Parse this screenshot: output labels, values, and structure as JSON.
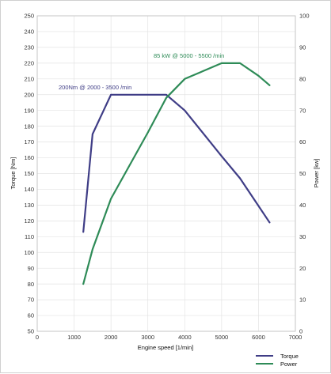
{
  "chart_data": {
    "type": "line",
    "xlabel": "Engine speed [1/min]",
    "ylabel_left": "Torque [Nm]",
    "ylabel_right": "Power [kw]",
    "xlim": [
      0,
      7000
    ],
    "ylim_left": [
      50,
      250
    ],
    "ylim_right": [
      0,
      100
    ],
    "x_ticks": [
      "0",
      "1000",
      "2000",
      "3000",
      "4000",
      "5000",
      "6000",
      "7000"
    ],
    "left_ticks": [
      "50",
      "60",
      "70",
      "80",
      "90",
      "100",
      "110",
      "120",
      "130",
      "140",
      "150",
      "160",
      "170",
      "180",
      "190",
      "200",
      "210",
      "220",
      "230",
      "240",
      "250"
    ],
    "right_ticks": [
      "0",
      "10",
      "20",
      "30",
      "40",
      "50",
      "60",
      "70",
      "80",
      "90",
      "100"
    ],
    "grid": true,
    "legend_position": "bottom-right",
    "series": [
      {
        "name": "Torque",
        "axis": "left",
        "color": "#3f3d86",
        "x": [
          1250,
          1500,
          2000,
          3000,
          3500,
          4000,
          5000,
          5500,
          6300
        ],
        "y": [
          113,
          175,
          200,
          200,
          200,
          190,
          161,
          147,
          119
        ]
      },
      {
        "name": "Power",
        "axis": "right",
        "color": "#2e8b57",
        "x": [
          1250,
          1500,
          2000,
          3000,
          3500,
          4000,
          5000,
          5500,
          6000,
          6300
        ],
        "y": [
          15,
          26,
          42,
          63,
          74,
          80,
          85,
          85,
          81,
          78
        ]
      }
    ],
    "annotations": [
      {
        "text": "200Nm @ 2000 - 3500 /min",
        "color": "#3f3d86"
      },
      {
        "text": "85 kW @ 5000 - 5500 /min",
        "color": "#2e8b57"
      }
    ]
  }
}
